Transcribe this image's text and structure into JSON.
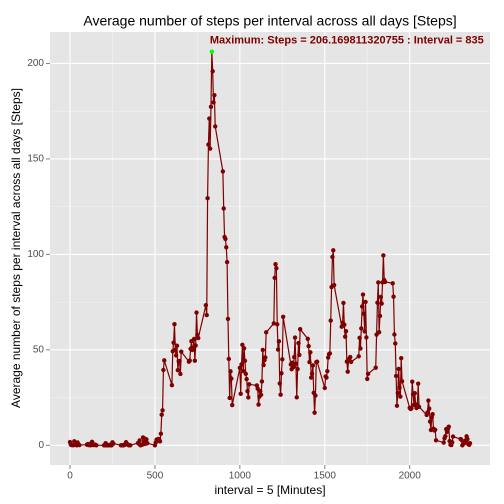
{
  "chart_data": {
    "type": "line",
    "title": "Average number of steps per interval across all days [Steps]",
    "xlabel": "interval = 5 [Minutes]",
    "ylabel": "Average number of steps per interval across all days [Steps]",
    "annotation": "Maximum: Steps = 206.169811320755 : Interval = 835",
    "x": [
      0,
      5,
      10,
      15,
      20,
      25,
      30,
      35,
      40,
      45,
      50,
      55,
      100,
      105,
      110,
      115,
      120,
      125,
      130,
      135,
      140,
      145,
      150,
      155,
      200,
      205,
      210,
      215,
      220,
      225,
      230,
      235,
      240,
      245,
      250,
      255,
      300,
      305,
      310,
      315,
      320,
      325,
      330,
      335,
      340,
      345,
      350,
      355,
      400,
      405,
      410,
      415,
      420,
      425,
      430,
      435,
      440,
      445,
      450,
      455,
      500,
      505,
      510,
      515,
      520,
      525,
      530,
      535,
      540,
      545,
      550,
      555,
      600,
      605,
      610,
      615,
      620,
      625,
      630,
      635,
      640,
      645,
      650,
      655,
      700,
      705,
      710,
      715,
      720,
      725,
      730,
      735,
      740,
      745,
      750,
      755,
      800,
      805,
      810,
      815,
      820,
      825,
      830,
      835,
      840,
      845,
      850,
      855,
      900,
      905,
      910,
      915,
      920,
      925,
      930,
      935,
      940,
      945,
      950,
      955,
      1000,
      1005,
      1010,
      1015,
      1020,
      1025,
      1030,
      1035,
      1040,
      1045,
      1050,
      1055,
      1100,
      1105,
      1110,
      1115,
      1120,
      1125,
      1130,
      1135,
      1140,
      1145,
      1150,
      1155,
      1200,
      1205,
      1210,
      1215,
      1220,
      1225,
      1230,
      1235,
      1240,
      1245,
      1250,
      1255,
      1300,
      1305,
      1310,
      1315,
      1320,
      1325,
      1330,
      1335,
      1340,
      1345,
      1350,
      1355,
      1400,
      1405,
      1410,
      1415,
      1420,
      1425,
      1430,
      1435,
      1440,
      1445,
      1450,
      1455,
      1500,
      1505,
      1510,
      1515,
      1520,
      1525,
      1530,
      1535,
      1540,
      1545,
      1550,
      1555,
      1600,
      1605,
      1610,
      1615,
      1620,
      1625,
      1630,
      1635,
      1640,
      1645,
      1650,
      1655,
      1700,
      1705,
      1710,
      1715,
      1720,
      1725,
      1730,
      1735,
      1740,
      1745,
      1750,
      1755,
      1800,
      1805,
      1810,
      1815,
      1820,
      1825,
      1830,
      1835,
      1840,
      1845,
      1850,
      1855,
      1900,
      1905,
      1910,
      1915,
      1920,
      1925,
      1930,
      1935,
      1940,
      1945,
      1950,
      1955,
      2000,
      2005,
      2010,
      2015,
      2020,
      2025,
      2030,
      2035,
      2040,
      2045,
      2050,
      2055,
      2100,
      2105,
      2110,
      2115,
      2120,
      2125,
      2130,
      2135,
      2140,
      2145,
      2150,
      2155,
      2200,
      2205,
      2210,
      2215,
      2220,
      2225,
      2230,
      2235,
      2240,
      2245,
      2250,
      2255,
      2300,
      2305,
      2310,
      2315,
      2320,
      2325,
      2330,
      2335,
      2340,
      2345,
      2350,
      2355
    ],
    "values": [
      1.72,
      0.34,
      0.13,
      0.15,
      0.08,
      2.09,
      0.53,
      0.87,
      0,
      1.47,
      0.3,
      0.13,
      0.32,
      0.68,
      0.15,
      0.34,
      0,
      1.11,
      1.83,
      0.17,
      0.17,
      0.38,
      0.26,
      0,
      0,
      0,
      1.13,
      0,
      0,
      0.13,
      0,
      0.23,
      0,
      0,
      1.55,
      0.94,
      0,
      0,
      0,
      0,
      0.21,
      0.62,
      1.62,
      0.58,
      0.49,
      0.08,
      0,
      0,
      1.19,
      0.94,
      2.57,
      0,
      0.34,
      0.36,
      4.11,
      0.66,
      3.49,
      0.83,
      3.11,
      1.11,
      0,
      1.57,
      3,
      2.25,
      3.32,
      2.96,
      2.09,
      6.06,
      16.02,
      18.34,
      39.45,
      44.49,
      31.49,
      49.26,
      53.77,
      63.45,
      49.96,
      47.08,
      52.15,
      39.34,
      44.02,
      44.17,
      37.36,
      49.04,
      43.81,
      44.38,
      50.51,
      54.51,
      49.92,
      50.98,
      55.68,
      44.32,
      52.26,
      69.55,
      57.85,
      56.15,
      73.38,
      68.21,
      129.43,
      157.53,
      171.15,
      155.4,
      177.3,
      206.169811320755,
      195.92,
      179.57,
      183.4,
      167.02,
      143.45,
      124.04,
      109.11,
      108.11,
      103.72,
      95.96,
      66.21,
      45.23,
      24.79,
      38.75,
      34.98,
      21.06,
      40.57,
      26.98,
      42.42,
      52.66,
      38.92,
      50.79,
      44.28,
      37.42,
      34.7,
      28.34,
      25.09,
      31.94,
      31.36,
      29.68,
      21.32,
      25.55,
      28.38,
      26.47,
      33.43,
      49.98,
      42.04,
      44.6,
      46.04,
      59.19,
      63.87,
      87.7,
      94.85,
      92.77,
      63.4,
      50.17,
      54.47,
      32.42,
      26.53,
      37.74,
      45.06,
      67.28,
      42.34,
      39.89,
      43.26,
      40.98,
      46.25,
      56.43,
      42.75,
      25.13,
      39.96,
      53.55,
      47.32,
      60.81,
      55.75,
      51.96,
      43.58,
      48.7,
      35.47,
      37.55,
      41.85,
      27.51,
      17.11,
      26.08,
      43.62,
      43.77,
      30.02,
      36.08,
      35.49,
      38.85,
      45.96,
      47.75,
      48.13,
      65.32,
      82.91,
      98.66,
      102.11,
      83.96,
      62.13,
      64.13,
      74.55,
      63.17,
      56.91,
      59.77,
      43.87,
      38.57,
      44.66,
      45.45,
      46.21,
      43.68,
      46.62,
      56.3,
      50.72,
      61.23,
      72.72,
      78.94,
      68.94,
      59.66,
      75.09,
      56.51,
      34.77,
      37.45,
      40.68,
      58.02,
      74.7,
      85.32,
      59.26,
      67.77,
      77.7,
      74.25,
      85.34,
      99.45,
      86.58,
      85.6,
      84.87,
      77.83,
      58.04,
      53.36,
      36.32,
      20.72,
      27.4,
      40.02,
      30.21,
      25.55,
      45.66,
      33.53,
      19.62,
      19.02,
      19.34,
      33.34,
      26.81,
      21.17,
      27.3,
      21.34,
      19.55,
      21.32,
      32.3,
      20.15,
      15.94,
      17.23,
      23.45,
      19.25,
      12.45,
      8.02,
      14.66,
      16.3,
      8.68,
      7.79,
      8.13,
      2.62,
      1.45,
      3.68,
      4.81,
      8.51,
      7.08,
      8.7,
      9.75,
      2.21,
      0.32,
      0.11,
      1.6,
      4.6,
      3.3,
      2.85,
      0,
      0.83,
      0.96,
      1.58,
      2.6,
      4.7,
      3.3,
      0.64,
      0.23,
      1.08
    ],
    "color": "#7f0000",
    "highlight_color": "#00ff00",
    "xlim": [
      -117.75,
      2472.75
    ],
    "xticks": [
      0,
      500,
      1000,
      1500,
      2000
    ],
    "ylim": [
      -10.31,
      216.48
    ],
    "yticks": [
      0,
      50,
      100,
      150,
      200
    ],
    "grid": true
  }
}
